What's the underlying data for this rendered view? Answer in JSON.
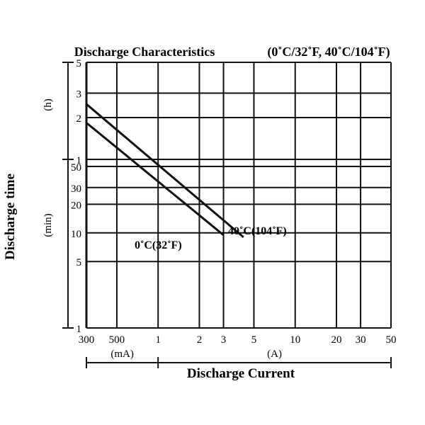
{
  "chart_data": {
    "type": "line",
    "title": "Discharge Characteristics",
    "title_conditions": "(0˚C/32˚F, 40˚C/104˚F)",
    "xlabel": "Discharge Current",
    "ylabel": "Discharge time",
    "x_scale": "log",
    "y_scale": "log",
    "x_unit_groups": [
      {
        "label": "(mA)",
        "ticks": [
          "300",
          "500"
        ],
        "values_A": [
          0.3,
          0.5
        ]
      },
      {
        "label": "(A)",
        "ticks": [
          "1",
          "2",
          "3",
          "5",
          "10",
          "20",
          "30",
          "50"
        ],
        "values_A": [
          1,
          2,
          3,
          5,
          10,
          20,
          30,
          50
        ]
      }
    ],
    "y_unit_groups": [
      {
        "label": "(min)",
        "ticks": [
          "1",
          "5",
          "10",
          "20",
          "30",
          "50"
        ],
        "values_min": [
          1,
          5,
          10,
          20,
          30,
          50
        ]
      },
      {
        "label": "(h)",
        "ticks": [
          "1",
          "2",
          "3",
          "5"
        ],
        "values_min": [
          60,
          120,
          180,
          300
        ]
      }
    ],
    "series": [
      {
        "name": "0˚C(32˚F)",
        "points": [
          {
            "current_A": 0.3,
            "time_min": 110
          },
          {
            "current_A": 3.0,
            "time_min": 9.5
          }
        ]
      },
      {
        "name": "40˚C(104˚F)",
        "points": [
          {
            "current_A": 0.3,
            "time_min": 150
          },
          {
            "current_A": 4.2,
            "time_min": 9.0
          }
        ]
      }
    ],
    "grid": true,
    "legend": "inline labels near lines"
  }
}
